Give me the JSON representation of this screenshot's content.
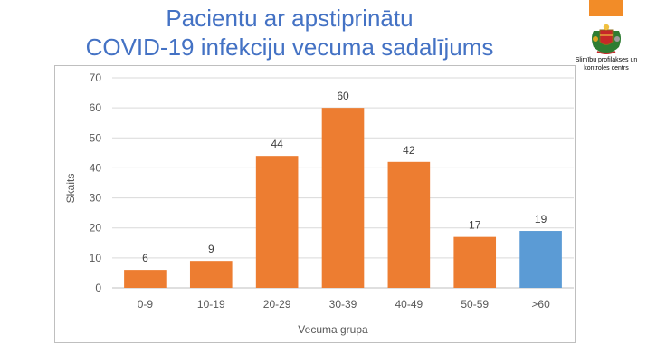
{
  "title_line1": "Pacientu ar apstiprinātu",
  "title_line2": "COVID-19 infekciju vecuma sadalījums",
  "org_line1": "Slimību profilakses un",
  "org_line2": "kontroles centrs",
  "colors": {
    "title": "#4472c4",
    "bar": "#ed7d31",
    "highlight": "#5b9bd5",
    "tab": "#f28c28"
  },
  "chart_data": {
    "type": "bar",
    "categories": [
      "0-9",
      "10-19",
      "20-29",
      "30-39",
      "40-49",
      "50-59",
      ">60"
    ],
    "values": [
      6,
      9,
      44,
      60,
      42,
      17,
      19
    ],
    "highlight_index": 6,
    "xlabel": "Vecuma grupa",
    "ylabel": "Skaits",
    "ylim": [
      0,
      70
    ],
    "yticks": [
      0,
      10,
      20,
      30,
      40,
      50,
      60,
      70
    ],
    "grid": true,
    "data_labels": true
  }
}
